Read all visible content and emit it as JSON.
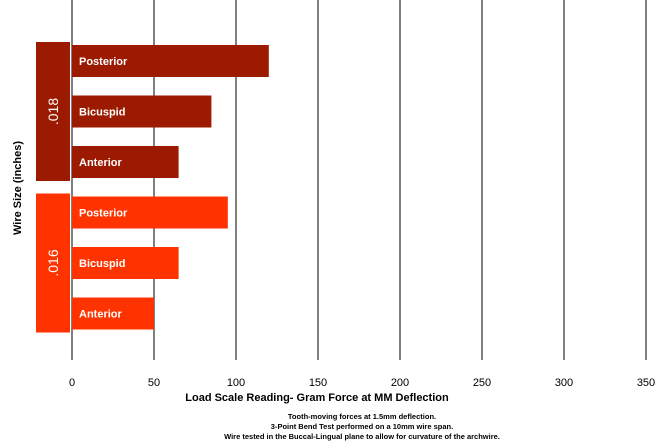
{
  "chart_data": {
    "type": "bar",
    "orientation": "horizontal",
    "xlabel": "Load Scale Reading- Gram Force at MM Deflection",
    "ylabel": "Wire Size (inches)",
    "xlim": [
      0,
      350
    ],
    "xticks": [
      0,
      50,
      100,
      150,
      200,
      250,
      300,
      350
    ],
    "grid": "vertical",
    "groups": [
      {
        "name": ".018",
        "color": "#9c1a00",
        "bars": [
          {
            "label": "Posterior",
            "value": 120
          },
          {
            "label": "Bicuspid",
            "value": 85
          },
          {
            "label": "Anterior",
            "value": 65
          }
        ]
      },
      {
        "name": ".016",
        "color": "#ff3300",
        "bars": [
          {
            "label": "Posterior",
            "value": 95
          },
          {
            "label": "Bicuspid",
            "value": 65
          },
          {
            "label": "Anterior",
            "value": 50
          }
        ]
      }
    ]
  },
  "notes": [
    "Tooth-moving  forces at 1.5mm deflection.",
    "3-Point Bend Test performed on a 10mm wire span.",
    "Wire tested in the Buccal-Lingual plane to allow for curvature of the archwire."
  ]
}
